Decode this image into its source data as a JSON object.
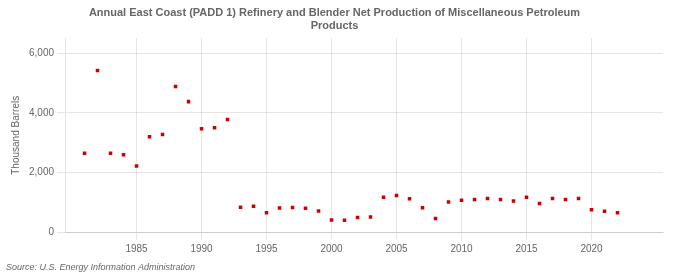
{
  "chart_data": {
    "type": "scatter",
    "title": "Annual East Coast (PADD 1) Refinery and Blender Net Production of Miscellaneous Petroleum\nProducts",
    "ylabel": "Thousand Barrels",
    "source": "Source: U.S. Energy Information Administration",
    "x": [
      1981,
      1982,
      1983,
      1984,
      1985,
      1986,
      1987,
      1988,
      1989,
      1990,
      1991,
      1992,
      1993,
      1994,
      1995,
      1996,
      1997,
      1998,
      1999,
      2000,
      2001,
      2002,
      2003,
      2004,
      2005,
      2006,
      2007,
      2008,
      2009,
      2010,
      2011,
      2012,
      2013,
      2014,
      2015,
      2016,
      2017,
      2018,
      2019,
      2020,
      2021,
      2022
    ],
    "values": [
      2650,
      5420,
      2650,
      2600,
      2220,
      3200,
      3280,
      4890,
      4380,
      3470,
      3500,
      3780,
      840,
      870,
      650,
      810,
      830,
      800,
      710,
      410,
      400,
      490,
      510,
      1170,
      1230,
      1120,
      820,
      460,
      1010,
      1070,
      1100,
      1130,
      1100,
      1050,
      1170,
      960,
      1130,
      1100,
      1130,
      750,
      700,
      650
    ],
    "color": "#cc0000",
    "marker": "square",
    "xlim": [
      1979.5,
      2025.5
    ],
    "xticks": [
      1985,
      1990,
      1995,
      2000,
      2005,
      2010,
      2015,
      2020
    ],
    "ylim": [
      0,
      6500
    ],
    "yticks": [
      0,
      {
        "value": 2000,
        "label": "2,000"
      },
      {
        "value": 4000,
        "label": "4,000"
      },
      {
        "value": 6000,
        "label": "6,000"
      }
    ],
    "grid": true
  }
}
